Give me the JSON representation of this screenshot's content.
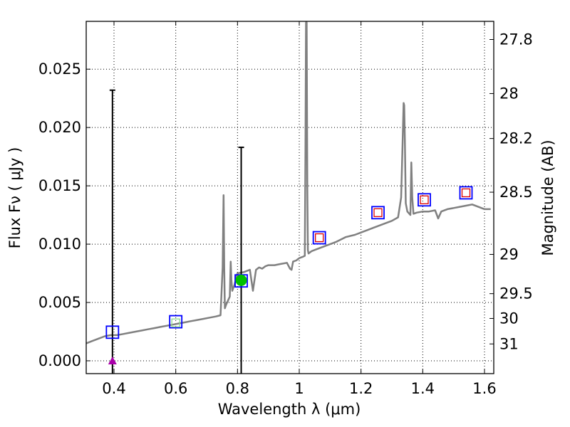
{
  "chart_data": {
    "type": "line",
    "title": "",
    "xlabel": "Wavelength  λ (μm)",
    "ylabel": "Flux  Fν  ( μJy )",
    "ylabel_right": "Magnitude (AB)",
    "xlim": [
      0.31,
      1.63
    ],
    "ylim": [
      -0.0011,
      0.0291
    ],
    "grid": true,
    "x_ticks": [
      {
        "value": 0.4,
        "label": "0.4"
      },
      {
        "value": 0.6,
        "label": "0.6"
      },
      {
        "value": 0.8,
        "label": "0.8"
      },
      {
        "value": 1.0,
        "label": "1"
      },
      {
        "value": 1.2,
        "label": "1.2"
      },
      {
        "value": 1.4,
        "label": "1.4"
      },
      {
        "value": 1.6,
        "label": "1.6"
      }
    ],
    "y_ticks": [
      {
        "value": 0.0,
        "label": "0.000"
      },
      {
        "value": 0.005,
        "label": "0.005"
      },
      {
        "value": 0.01,
        "label": "0.010"
      },
      {
        "value": 0.015,
        "label": "0.015"
      },
      {
        "value": 0.02,
        "label": "0.020"
      },
      {
        "value": 0.025,
        "label": "0.025"
      }
    ],
    "right_ticks": [
      {
        "mag": 27.8,
        "label": "27.8"
      },
      {
        "mag": 28,
        "label": "28"
      },
      {
        "mag": 28.2,
        "label": "28.2"
      },
      {
        "mag": 28.5,
        "label": "28.5"
      },
      {
        "mag": 29,
        "label": "29"
      },
      {
        "mag": 29.5,
        "label": "29.5"
      },
      {
        "mag": 30,
        "label": "30"
      },
      {
        "mag": 31,
        "label": "31"
      }
    ],
    "series": [
      {
        "name": "model_sed",
        "kind": "line",
        "color": "#808080",
        "x": [
          0.31,
          0.33,
          0.35,
          0.37,
          0.39,
          0.41,
          0.43,
          0.45,
          0.47,
          0.49,
          0.51,
          0.53,
          0.55,
          0.57,
          0.59,
          0.61,
          0.63,
          0.65,
          0.67,
          0.69,
          0.71,
          0.73,
          0.745,
          0.752,
          0.755,
          0.757,
          0.759,
          0.763,
          0.77,
          0.775,
          0.778,
          0.78,
          0.783,
          0.79,
          0.8,
          0.82,
          0.84,
          0.85,
          0.86,
          0.87,
          0.88,
          0.89,
          0.9,
          0.92,
          0.94,
          0.96,
          0.97,
          0.975,
          0.98,
          0.99,
          1.0,
          1.01,
          1.018,
          1.02,
          1.022,
          1.024,
          1.026,
          1.028,
          1.03,
          1.04,
          1.06,
          1.08,
          1.1,
          1.12,
          1.15,
          1.18,
          1.2,
          1.22,
          1.24,
          1.26,
          1.28,
          1.3,
          1.32,
          1.33,
          1.335,
          1.338,
          1.34,
          1.342,
          1.345,
          1.35,
          1.36,
          1.363,
          1.366,
          1.37,
          1.38,
          1.4,
          1.42,
          1.44,
          1.45,
          1.46,
          1.48,
          1.5,
          1.52,
          1.54,
          1.56,
          1.58,
          1.6,
          1.62
        ],
        "y": [
          0.0015,
          0.0017,
          0.0019,
          0.0021,
          0.0022,
          0.0022,
          0.0023,
          0.0024,
          0.0025,
          0.0026,
          0.0027,
          0.0028,
          0.0029,
          0.003,
          0.0031,
          0.0032,
          0.0033,
          0.0034,
          0.0035,
          0.0036,
          0.0037,
          0.0038,
          0.0039,
          0.008,
          0.0142,
          0.008,
          0.0045,
          0.0048,
          0.0052,
          0.0055,
          0.0085,
          0.007,
          0.006,
          0.0065,
          0.0075,
          0.0076,
          0.0078,
          0.006,
          0.0078,
          0.008,
          0.0079,
          0.0081,
          0.0082,
          0.0082,
          0.0083,
          0.0084,
          0.0079,
          0.0078,
          0.0085,
          0.0086,
          0.0088,
          0.0089,
          0.009,
          0.018,
          0.029,
          0.029,
          0.015,
          0.0095,
          0.0092,
          0.0094,
          0.0096,
          0.0098,
          0.01,
          0.0102,
          0.0106,
          0.0108,
          0.011,
          0.0112,
          0.0114,
          0.0116,
          0.0118,
          0.012,
          0.0123,
          0.014,
          0.019,
          0.0221,
          0.0219,
          0.019,
          0.0135,
          0.0128,
          0.0125,
          0.017,
          0.014,
          0.0126,
          0.0127,
          0.0128,
          0.0128,
          0.0129,
          0.0122,
          0.0128,
          0.013,
          0.0131,
          0.0132,
          0.0133,
          0.0134,
          0.0132,
          0.013,
          0.013
        ]
      },
      {
        "name": "observed_photometry",
        "kind": "square_marker",
        "edge_color": "#0000ff",
        "points": [
          {
            "x": 0.395,
            "y": 0.00245
          },
          {
            "x": 0.6,
            "y": 0.00335
          },
          {
            "x": 0.812,
            "y": 0.00685
          },
          {
            "x": 1.065,
            "y": 0.01055
          },
          {
            "x": 1.255,
            "y": 0.0127
          },
          {
            "x": 1.405,
            "y": 0.0138
          },
          {
            "x": 1.54,
            "y": 0.0144
          }
        ]
      },
      {
        "name": "model_photometry",
        "kind": "square_marker",
        "edge_color": "#dd0000",
        "points": [
          {
            "x": 1.065,
            "y": 0.01055
          },
          {
            "x": 1.255,
            "y": 0.0127
          },
          {
            "x": 1.405,
            "y": 0.0138
          },
          {
            "x": 1.54,
            "y": 0.0144
          }
        ]
      },
      {
        "name": "model_photometry_optical",
        "kind": "square_marker",
        "edge_color": "#8fd88f",
        "points": [
          {
            "x": 0.6,
            "y": 0.00325
          }
        ]
      },
      {
        "name": "error_bars",
        "kind": "errorbar",
        "color": "#000000",
        "bars": [
          {
            "x": 0.395,
            "low": -0.0011,
            "high": 0.0232
          },
          {
            "x": 0.812,
            "low": -0.0011,
            "high": 0.0183
          }
        ]
      },
      {
        "name": "detection_point",
        "kind": "circle_marker",
        "color": "#00c000",
        "points": [
          {
            "x": 0.812,
            "y": 0.0069
          }
        ]
      },
      {
        "name": "upper_limit",
        "kind": "triangle_marker",
        "color": "#aa00aa",
        "points": [
          {
            "x": 0.395,
            "y": 0.0
          }
        ]
      }
    ]
  }
}
